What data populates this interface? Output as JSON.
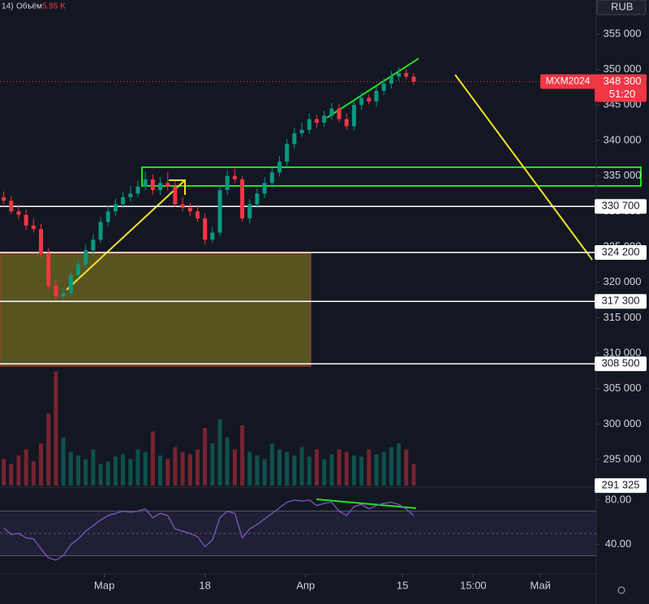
{
  "header": {
    "indicator": "14)",
    "volume_label": "Объём",
    "volume_value": "5.95 K",
    "currency": "RUB"
  },
  "chart_data": [
    {
      "type": "candlestick",
      "symbol": "MXM2024",
      "countdown": "51:20",
      "last_price": {
        "value": 348300,
        "label": "348 300"
      },
      "up_color": "#089981",
      "down_color": "#f23645",
      "x": [
        0,
        1,
        2,
        3,
        4,
        5,
        6,
        7,
        8,
        9,
        10,
        11,
        12,
        13,
        14,
        15,
        16,
        17,
        18,
        19,
        20,
        21,
        22,
        23,
        24,
        25,
        26,
        27,
        28,
        29,
        30,
        31,
        32,
        33,
        34,
        35,
        36,
        37,
        38,
        39,
        40,
        41,
        42,
        43,
        44,
        45,
        46,
        47,
        48,
        49,
        50,
        51,
        52,
        53,
        54,
        55
      ],
      "open": [
        332000,
        331500,
        330000,
        329500,
        328000,
        327500,
        324000,
        319500,
        318000,
        318500,
        321000,
        322500,
        324500,
        326000,
        328500,
        330000,
        331000,
        332000,
        332500,
        333500,
        334500,
        333000,
        334000,
        333500,
        331000,
        330500,
        330000,
        329000,
        326000,
        327000,
        333000,
        335000,
        334500,
        329000,
        331000,
        332500,
        334000,
        335500,
        337000,
        339500,
        341000,
        341500,
        343000,
        342500,
        343500,
        344500,
        343000,
        342000,
        345000,
        346000,
        345500,
        347000,
        348000,
        349000,
        349500,
        349000
      ],
      "high": [
        332800,
        332200,
        331000,
        330300,
        329000,
        328200,
        324800,
        320500,
        319200,
        321500,
        323200,
        325300,
        326800,
        329200,
        330800,
        331800,
        332800,
        333600,
        334300,
        335600,
        335200,
        334800,
        335500,
        334200,
        332000,
        331200,
        330900,
        329700,
        327800,
        333700,
        335800,
        336000,
        335000,
        331700,
        333200,
        334800,
        336200,
        337800,
        340200,
        341800,
        342500,
        343800,
        343600,
        344200,
        345300,
        345200,
        343800,
        345700,
        346800,
        346500,
        347800,
        348800,
        349800,
        350300,
        350100,
        349500
      ],
      "low": [
        331000,
        329600,
        328900,
        327400,
        327000,
        323500,
        319000,
        317500,
        317400,
        318000,
        320500,
        322000,
        323800,
        325500,
        327900,
        329400,
        330400,
        331400,
        332000,
        333000,
        332400,
        332300,
        333000,
        330600,
        330000,
        329300,
        328500,
        325300,
        325600,
        326500,
        332300,
        334000,
        328500,
        328300,
        330500,
        331900,
        333400,
        334900,
        336400,
        338900,
        340500,
        340900,
        341800,
        341900,
        342900,
        342500,
        341500,
        341400,
        344300,
        345100,
        344800,
        346400,
        347300,
        348400,
        348600,
        347800
      ],
      "close": [
        331500,
        330000,
        329500,
        328000,
        327500,
        324000,
        319500,
        318000,
        318500,
        321000,
        322500,
        324500,
        326000,
        328500,
        330000,
        331000,
        332000,
        332500,
        333500,
        334500,
        333000,
        334000,
        333500,
        331000,
        330500,
        330000,
        329000,
        326000,
        327000,
        333000,
        335000,
        334500,
        329000,
        331000,
        332500,
        334000,
        335500,
        337000,
        339500,
        341000,
        341500,
        343000,
        342500,
        343500,
        344500,
        343000,
        342000,
        345000,
        346000,
        345500,
        347000,
        348000,
        349000,
        349500,
        349000,
        348300
      ],
      "xlim": [
        -0.5,
        79.5
      ],
      "xticks": [
        {
          "value": 13.5,
          "label": "Мар"
        },
        {
          "value": 27,
          "label": "18"
        },
        {
          "value": 40.5,
          "label": "Апр"
        },
        {
          "value": 53.5,
          "label": "15"
        },
        {
          "value": 63,
          "label": "15:00"
        },
        {
          "value": 72,
          "label": "Май"
        }
      ],
      "ylim": [
        291000,
        359800
      ],
      "yticks": [
        {
          "value": 295000,
          "label": "295 000"
        },
        {
          "value": 300000,
          "label": "300 000"
        },
        {
          "value": 305000,
          "label": "305 000"
        },
        {
          "value": 310000,
          "label": "310 000"
        },
        {
          "value": 315000,
          "label": "315 000"
        },
        {
          "value": 320000,
          "label": "320 000"
        },
        {
          "value": 325000,
          "label": "325 000"
        },
        {
          "value": 330000,
          "label": "330 000"
        },
        {
          "value": 335000,
          "label": "335 000"
        },
        {
          "value": 340000,
          "label": "340 000"
        },
        {
          "value": 345000,
          "label": "345 000"
        },
        {
          "value": 350000,
          "label": "350 000"
        },
        {
          "value": 355000,
          "label": "355 000"
        }
      ],
      "levels": [
        {
          "value": 330700,
          "label": "330 700",
          "line": true
        },
        {
          "value": 324200,
          "label": "324 200",
          "line": true
        },
        {
          "value": 317300,
          "label": "317 300",
          "line": true
        },
        {
          "value": 308500,
          "label": "308 500",
          "line": true
        },
        {
          "value": 291325,
          "label": "291 325",
          "line": false
        }
      ]
    },
    {
      "type": "volume",
      "values": [
        22,
        18,
        25,
        30,
        20,
        35,
        60,
        95,
        40,
        28,
        25,
        22,
        30,
        18,
        20,
        24,
        26,
        22,
        30,
        28,
        45,
        25,
        22,
        32,
        28,
        26,
        30,
        48,
        35,
        55,
        40,
        30,
        50,
        28,
        25,
        22,
        35,
        30,
        28,
        25,
        32,
        24,
        30,
        22,
        26,
        30,
        28,
        25,
        24,
        30,
        26,
        28,
        32,
        35,
        30,
        18
      ],
      "ylim": [
        0,
        100
      ]
    },
    {
      "type": "line",
      "color": "#7e57c2",
      "values": [
        55,
        49,
        50,
        46,
        45,
        36,
        28,
        26,
        30,
        40,
        45,
        52,
        57,
        62,
        66,
        68,
        70,
        69,
        70,
        72,
        64,
        68,
        66,
        54,
        52,
        50,
        47,
        38,
        44,
        64,
        70,
        68,
        46,
        54,
        58,
        63,
        68,
        73,
        78,
        80,
        79,
        80,
        75,
        77,
        78,
        70,
        66,
        74,
        76,
        72,
        75,
        77,
        78,
        76,
        72,
        66
      ],
      "ylim": [
        15,
        91.6
      ],
      "yticks": [
        {
          "value": 80,
          "label": "80.00"
        },
        {
          "value": 40,
          "label": "40.00"
        }
      ],
      "band": [
        30,
        70
      ],
      "midline": 50
    }
  ]
}
